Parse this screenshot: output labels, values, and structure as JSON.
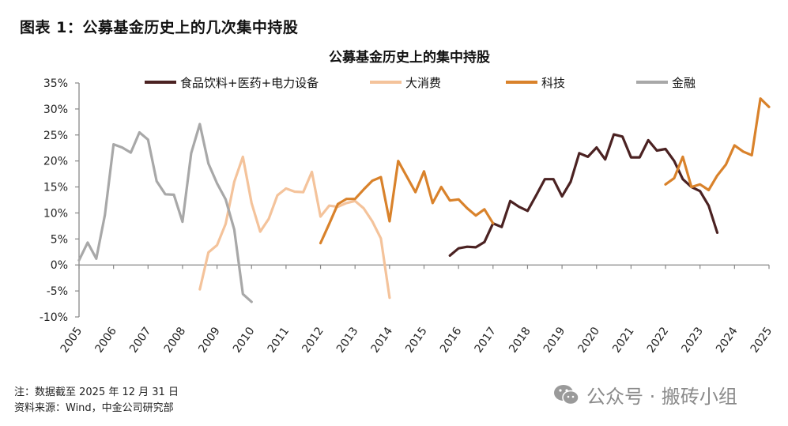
{
  "figure_title": "图表 1：公募基金历史上的几次集中持股",
  "notes": {
    "note": "注：数据截至 2025 年 12 月 31 日",
    "source": "资料来源：Wind，中金公司研究部"
  },
  "watermark": {
    "icon": "wechat-icon",
    "text": "公众号 · 搬砖小组"
  },
  "chart_data": {
    "type": "line",
    "title": "公募基金历史上的集中持股",
    "xlabel": "",
    "ylabel": "",
    "xlim": [
      2005,
      2025
    ],
    "ylim": [
      -10,
      35
    ],
    "x_ticks": [
      "2005",
      "2006",
      "2007",
      "2008",
      "2009",
      "2010",
      "2011",
      "2012",
      "2013",
      "2014",
      "2015",
      "2016",
      "2017",
      "2018",
      "2019",
      "2020",
      "2021",
      "2022",
      "2023",
      "2024",
      "2025"
    ],
    "y_ticks": [
      "35%",
      "30%",
      "25%",
      "20%",
      "15%",
      "10%",
      "5%",
      "0%",
      "-5%",
      "-10%"
    ],
    "y_tick_values": [
      35,
      30,
      25,
      20,
      15,
      10,
      5,
      0,
      -5,
      -10
    ],
    "grid": false,
    "legend_position": "top",
    "x_step": 0.25,
    "series": [
      {
        "name": "食品饮料+医药+电力设备",
        "color": "#4b2222",
        "x_start": 2015.75,
        "values": [
          1.8,
          3.2,
          3.5,
          3.4,
          4.4,
          8.0,
          7.3,
          12.3,
          11.2,
          10.4,
          13.4,
          16.5,
          16.5,
          13.2,
          16.0,
          21.5,
          20.8,
          22.6,
          20.3,
          25.1,
          24.7,
          20.7,
          20.7,
          24.0,
          22.0,
          22.3,
          20.0,
          16.5,
          15.0,
          14.2,
          11.4,
          6.2
        ]
      },
      {
        "name": "大消费",
        "color": "#f4c39b",
        "x_start": 2008.5,
        "values": [
          -4.7,
          2.4,
          3.8,
          7.9,
          16.0,
          20.8,
          11.9,
          6.4,
          8.9,
          13.4,
          14.7,
          14.1,
          14.0,
          17.9,
          9.3,
          11.4,
          11.2,
          11.9,
          12.3,
          10.9,
          8.4,
          5.1,
          -6.3
        ]
      },
      {
        "name": "科技",
        "color": "#d9822b",
        "segments": [
          {
            "x_start": 2012.0,
            "values": [
              4.2,
              7.9,
              11.7,
              12.7,
              12.7,
              14.5,
              16.2,
              16.9,
              8.4,
              20.0,
              17.0,
              14.0,
              18.0,
              11.9,
              15.0,
              12.4,
              12.6,
              10.9,
              9.5,
              10.7,
              8.0
            ]
          },
          {
            "x_start": 2022.0,
            "values": [
              15.5,
              16.7,
              20.8,
              15.0,
              15.5,
              14.4,
              17.2,
              19.3,
              23.0,
              21.8,
              21.1,
              32.0,
              30.4
            ]
          }
        ]
      },
      {
        "name": "金融",
        "color": "#a8a8a8",
        "x_start": 2005.0,
        "values": [
          0.9,
          4.3,
          1.2,
          9.6,
          23.2,
          22.6,
          21.6,
          25.5,
          24.1,
          16.1,
          13.6,
          13.5,
          8.3,
          21.5,
          27.1,
          19.5,
          15.7,
          12.6,
          6.8,
          -5.6,
          -7.1
        ]
      }
    ]
  }
}
